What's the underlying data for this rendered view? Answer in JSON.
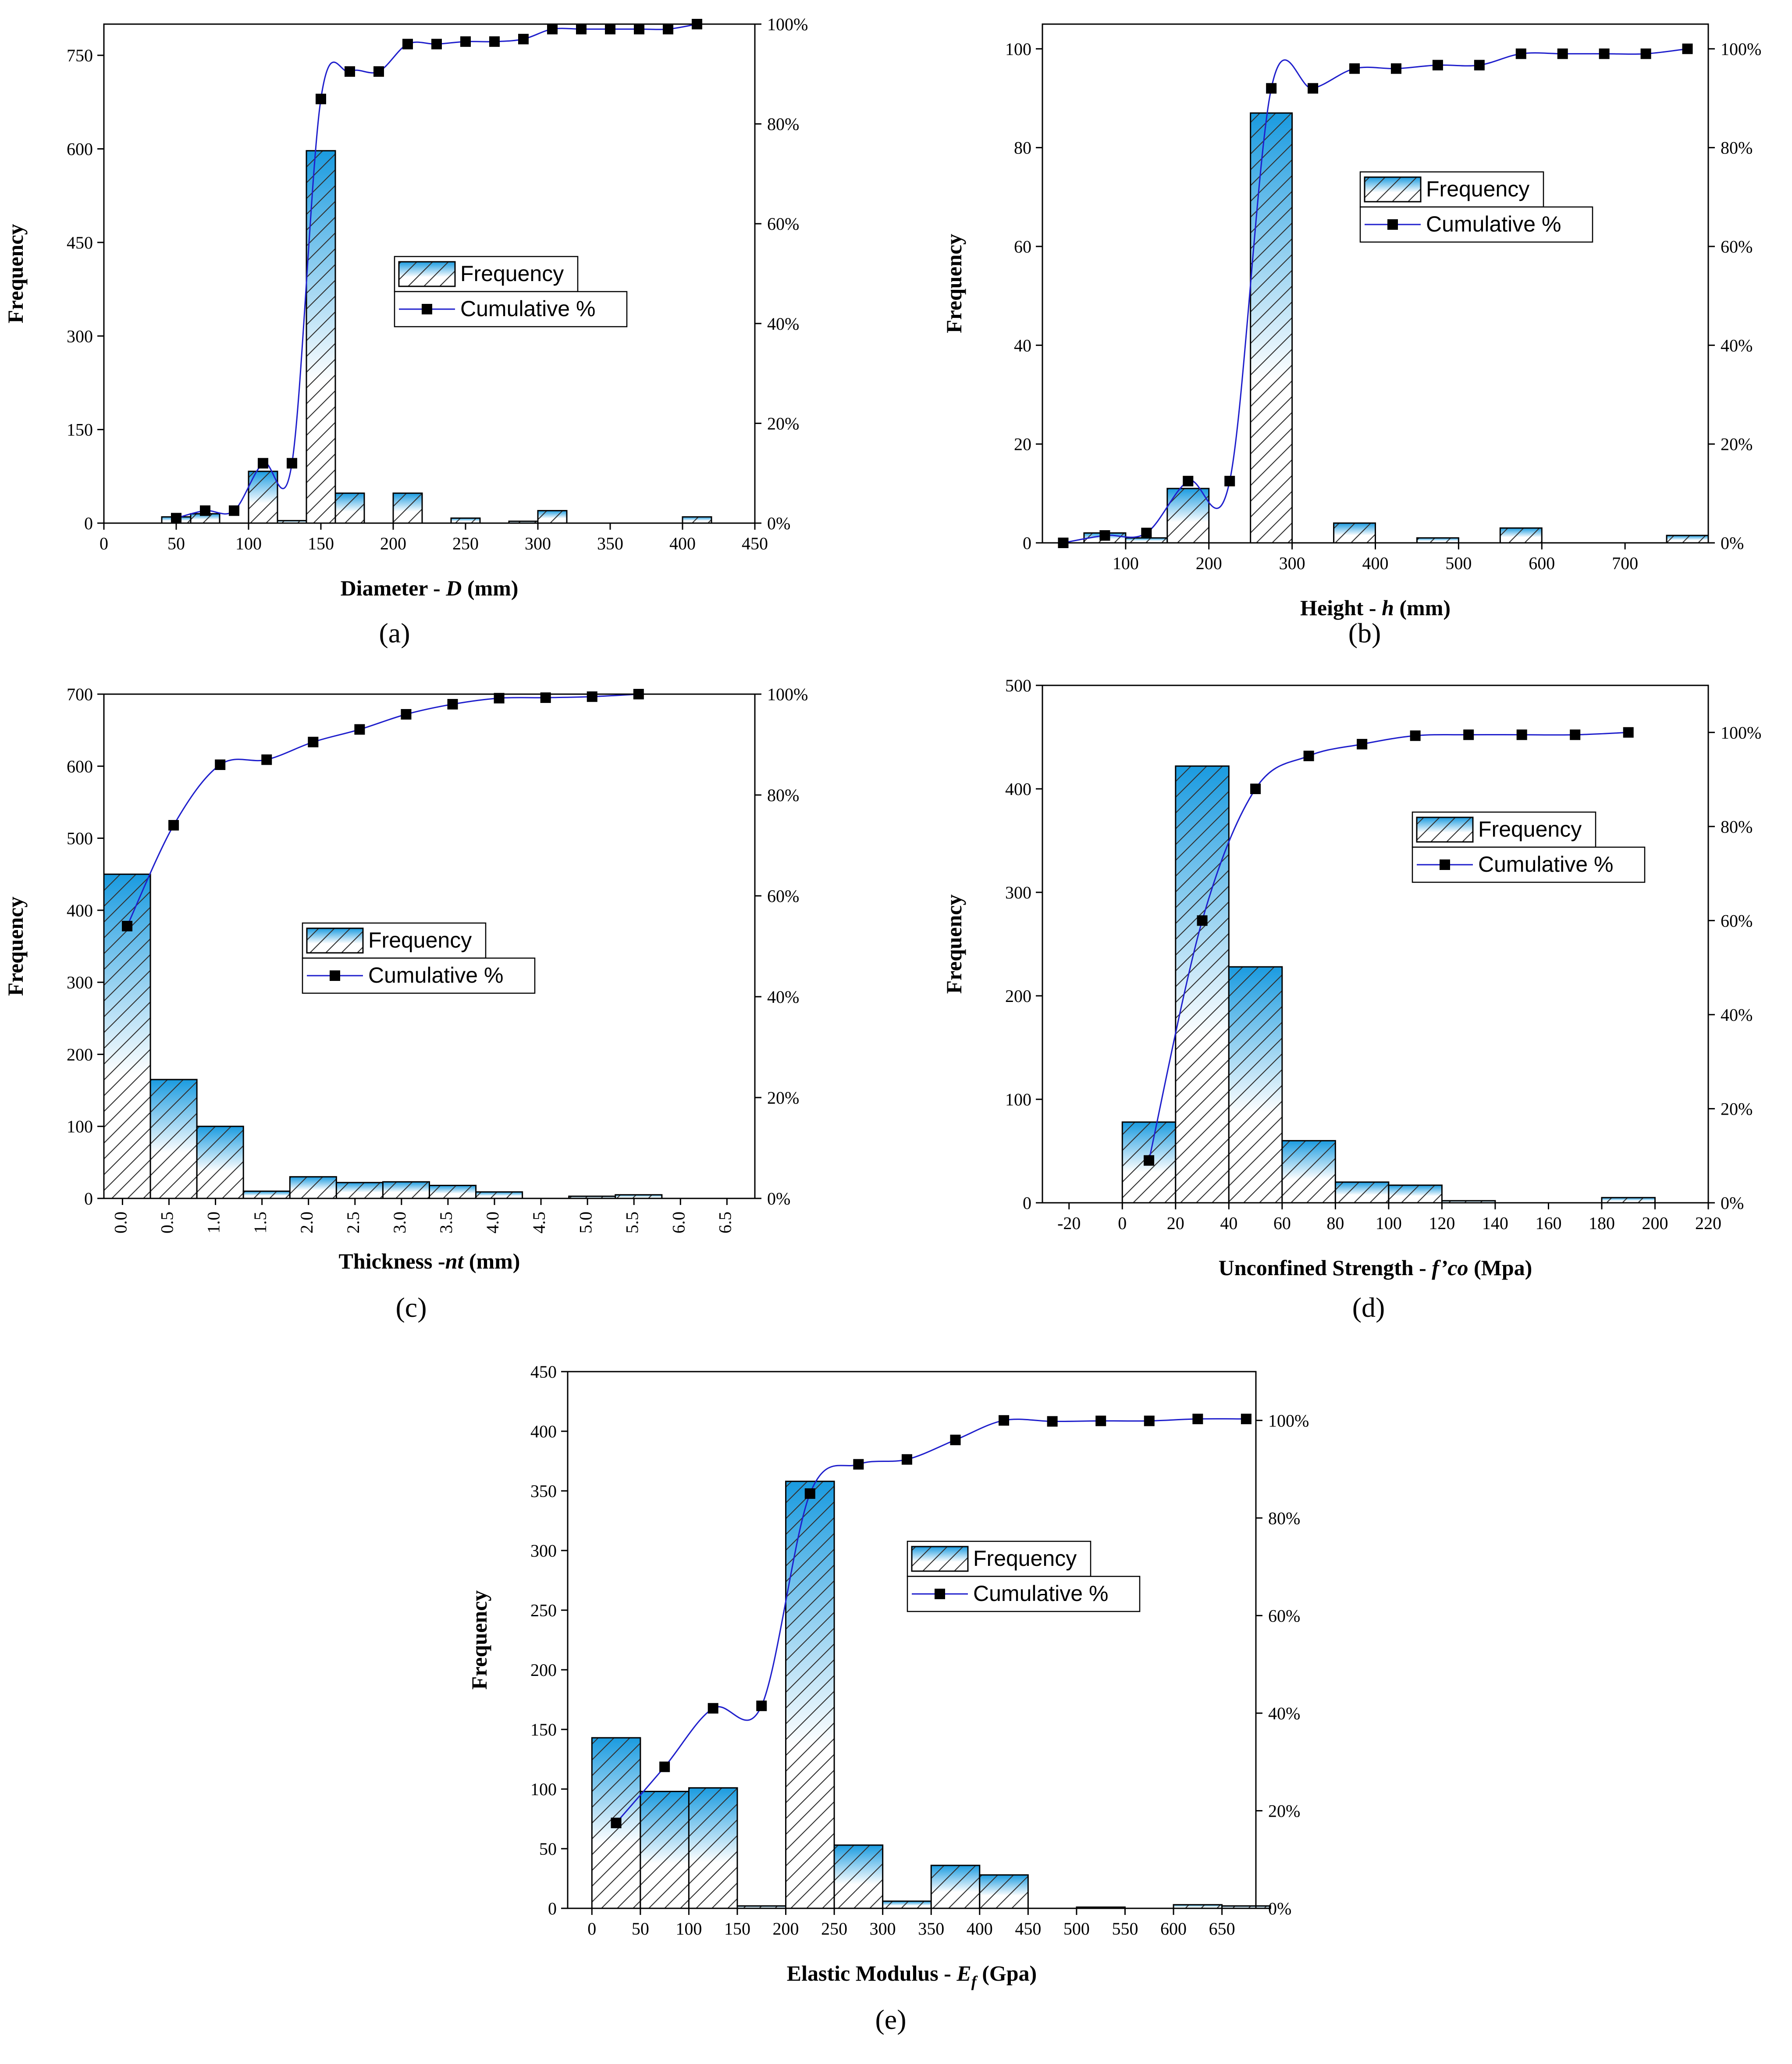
{
  "colors": {
    "bar_top": "#1a9be0",
    "bar_bottom": "#ffffff",
    "hatch": "#333333",
    "cumulative_line": "#1f1fcc",
    "marker": "#000000"
  },
  "legend": {
    "frequency": "Frequency",
    "cumulative": "Cumulative %"
  },
  "chart_data": [
    {
      "id": "a",
      "panel_label": "(a)",
      "type": "bar",
      "xlabel_parts": [
        "Diameter - ",
        "D",
        " (mm)"
      ],
      "ylabel": "Frequency",
      "xlim": [
        0,
        450
      ],
      "x_ticks": [
        0,
        50,
        100,
        150,
        200,
        250,
        300,
        350,
        400,
        450
      ],
      "ylim": [
        0,
        800
      ],
      "y_ticks": [
        0,
        150,
        300,
        450,
        600,
        750
      ],
      "y2lim": [
        0,
        100
      ],
      "y2_ticks": [
        0,
        20,
        40,
        60,
        80,
        100
      ],
      "bin_width": 20,
      "bin_edges_left": [
        40,
        60,
        100,
        120,
        140,
        160,
        200,
        240,
        280,
        300,
        400
      ],
      "bar_values": [
        10,
        15,
        83,
        4,
        597,
        48,
        48,
        8,
        3,
        20,
        10
      ],
      "cumulative": [
        [
          50,
          1
        ],
        [
          70,
          2.5
        ],
        [
          90,
          2.5
        ],
        [
          110,
          12
        ],
        [
          130,
          12
        ],
        [
          150,
          85
        ],
        [
          170,
          90.5
        ],
        [
          190,
          90.5
        ],
        [
          210,
          96
        ],
        [
          230,
          96
        ],
        [
          250,
          96.5
        ],
        [
          270,
          96.5
        ],
        [
          290,
          97
        ],
        [
          310,
          99
        ],
        [
          330,
          99
        ],
        [
          350,
          99
        ],
        [
          370,
          99
        ],
        [
          390,
          99
        ],
        [
          410,
          100
        ]
      ]
    },
    {
      "id": "b",
      "panel_label": "(b)",
      "type": "bar",
      "xlabel_parts": [
        "Height - ",
        "h",
        " (mm)"
      ],
      "ylabel": "Frequency",
      "xlim": [
        0,
        800
      ],
      "x_ticks": [
        100,
        200,
        300,
        400,
        500,
        600,
        700
      ],
      "ylim": [
        0,
        105
      ],
      "y_ticks": [
        0,
        20,
        40,
        60,
        80,
        100
      ],
      "y2lim": [
        0,
        105
      ],
      "y2_ticks": [
        0,
        20,
        40,
        60,
        80,
        100
      ],
      "bin_width": 50,
      "bin_edges_left": [
        50,
        100,
        150,
        250,
        350,
        450,
        550,
        750
      ],
      "bar_values": [
        2,
        1,
        11,
        87,
        4,
        1,
        3,
        1.5
      ],
      "cumulative": [
        [
          25,
          0
        ],
        [
          75,
          1.5
        ],
        [
          125,
          2
        ],
        [
          175,
          12.5
        ],
        [
          225,
          12.5
        ],
        [
          275,
          92
        ],
        [
          325,
          92
        ],
        [
          375,
          96
        ],
        [
          425,
          96
        ],
        [
          475,
          96.7
        ],
        [
          525,
          96.7
        ],
        [
          575,
          99
        ],
        [
          625,
          99
        ],
        [
          675,
          99
        ],
        [
          725,
          99
        ],
        [
          775,
          100
        ]
      ]
    },
    {
      "id": "c",
      "panel_label": "(c)",
      "type": "bar",
      "xlabel_parts": [
        "Thickness -",
        "nt",
        " (mm)"
      ],
      "ylabel": "Frequency",
      "xlim": [
        -0.2,
        6.8
      ],
      "x_ticks": [
        0.0,
        0.5,
        1.0,
        1.5,
        2.0,
        2.5,
        3.0,
        3.5,
        4.0,
        4.5,
        5.0,
        5.5,
        6.0,
        6.5
      ],
      "x_tick_labels": [
        "0.0",
        "0.5",
        "1.0",
        "1.5",
        "2.0",
        "2.5",
        "3.0",
        "3.5",
        "4.0",
        "4.5",
        "5.0",
        "5.5",
        "6.0",
        "6.5"
      ],
      "ylim": [
        0,
        700
      ],
      "y_ticks": [
        0,
        100,
        200,
        300,
        400,
        500,
        600,
        700
      ],
      "y2lim": [
        0,
        100
      ],
      "y2_ticks": [
        0,
        20,
        40,
        60,
        80,
        100
      ],
      "bin_width": 0.5,
      "bin_edges_left": [
        -0.2,
        0.3,
        0.8,
        1.3,
        1.8,
        2.3,
        2.8,
        3.3,
        3.8,
        4.8,
        5.3
      ],
      "bar_values": [
        450,
        165,
        100,
        10,
        30,
        22,
        23,
        18,
        9,
        3,
        5
      ],
      "cumulative": [
        [
          0.05,
          54
        ],
        [
          0.55,
          74
        ],
        [
          1.05,
          86
        ],
        [
          1.55,
          87
        ],
        [
          2.05,
          90.5
        ],
        [
          2.55,
          93
        ],
        [
          3.05,
          96
        ],
        [
          3.55,
          98
        ],
        [
          4.05,
          99.2
        ],
        [
          4.55,
          99.3
        ],
        [
          5.05,
          99.5
        ],
        [
          5.55,
          100
        ]
      ]
    },
    {
      "id": "d",
      "panel_label": "(d)",
      "type": "bar",
      "xlabel_parts": [
        "Unconfined Strength - ",
        "f’co",
        " (Mpa)"
      ],
      "ylabel": "Frequency",
      "xlim": [
        -30,
        220
      ],
      "x_ticks": [
        -20,
        0,
        20,
        40,
        60,
        80,
        100,
        120,
        140,
        160,
        180,
        200,
        220
      ],
      "ylim": [
        0,
        500
      ],
      "y_ticks": [
        0,
        100,
        200,
        300,
        400,
        500
      ],
      "y2lim": [
        0,
        110
      ],
      "y2_ticks": [
        0,
        20,
        40,
        60,
        80,
        100
      ],
      "bin_width": 20,
      "bin_edges_left": [
        0,
        20,
        40,
        60,
        80,
        100,
        120,
        180
      ],
      "bar_values": [
        78,
        422,
        228,
        60,
        20,
        17,
        2,
        5
      ],
      "cumulative": [
        [
          10,
          9
        ],
        [
          30,
          60
        ],
        [
          50,
          88
        ],
        [
          70,
          95
        ],
        [
          90,
          97.5
        ],
        [
          110,
          99.3
        ],
        [
          130,
          99.5
        ],
        [
          150,
          99.5
        ],
        [
          170,
          99.5
        ],
        [
          190,
          100
        ]
      ]
    },
    {
      "id": "e",
      "panel_label": "(e)",
      "type": "bar",
      "xlabel_parts": [
        "Elastic Modulus - ",
        "E",
        "f",
        " (Gpa)"
      ],
      "ylabel": "Frequency",
      "xlim": [
        -25,
        685
      ],
      "x_ticks": [
        0,
        50,
        100,
        150,
        200,
        250,
        300,
        350,
        400,
        450,
        500,
        550,
        600,
        650
      ],
      "ylim": [
        0,
        450
      ],
      "y_ticks": [
        0,
        50,
        100,
        150,
        200,
        250,
        300,
        350,
        400,
        450
      ],
      "y2lim": [
        0,
        110
      ],
      "y2_ticks": [
        0,
        20,
        40,
        60,
        80,
        100
      ],
      "bin_width": 50,
      "bin_edges_left": [
        0,
        50,
        100,
        150,
        200,
        250,
        300,
        350,
        400,
        500,
        600,
        650
      ],
      "bar_values": [
        143,
        98,
        101,
        2,
        358,
        53,
        6,
        36,
        28,
        1,
        3,
        2
      ],
      "cumulative": [
        [
          25,
          17.5
        ],
        [
          75,
          29
        ],
        [
          125,
          41
        ],
        [
          175,
          41.5
        ],
        [
          225,
          85
        ],
        [
          275,
          91
        ],
        [
          325,
          92
        ],
        [
          375,
          96
        ],
        [
          425,
          100
        ],
        [
          475,
          99.8
        ],
        [
          525,
          99.9
        ],
        [
          575,
          99.9
        ],
        [
          625,
          100.3
        ],
        [
          675,
          100.3
        ]
      ]
    }
  ]
}
